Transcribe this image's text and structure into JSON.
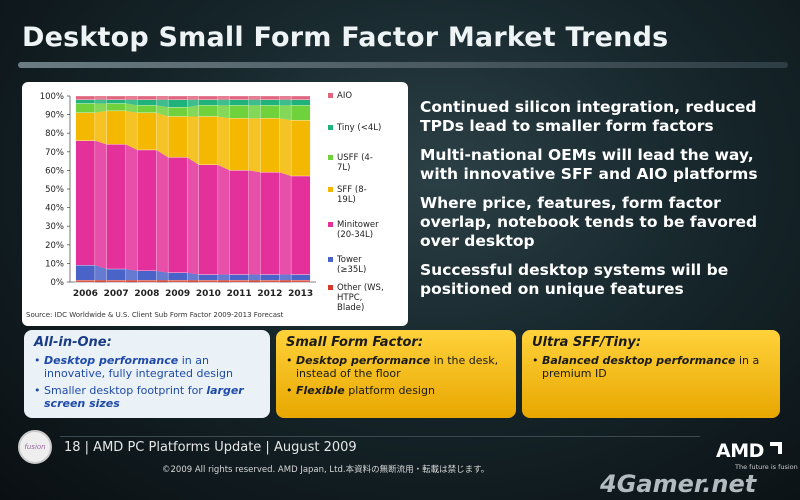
{
  "slide": {
    "title": "Desktop Small Form Factor Market Trends",
    "bullets": [
      "Continued silicon integration, reduced TPDs lead to smaller form factors",
      "Multi-national OEMs will lead the way, with innovative SFF and AIO platforms",
      "Where price, features, form factor overlap, notebook tends to be favored over desktop",
      "Successful desktop systems will be positioned on unique features"
    ],
    "source": "Source: IDC Worldwide & U.S. Client Sub Form Factor 2009-2013 Forecast",
    "boxes": {
      "aio": {
        "title": "All-in-One:",
        "item1_bold": "Desktop performance",
        "item1_rest": " in an innovative, fully integrated design",
        "item2_rest": "Smaller desktop footprint for ",
        "item2_bold": "larger screen sizes"
      },
      "sff": {
        "title": "Small Form Factor:",
        "item1_bold": "Desktop performance",
        "item1_rest": " in the desk, instead of the floor",
        "item2_bold": "Flexible",
        "item2_rest": " platform design"
      },
      "usff": {
        "title": "Ultra SFF/Tiny:",
        "item1_bold": "Balanced desktop performance",
        "item1_rest": " in a premium ID"
      }
    },
    "footer": {
      "page_text": "18  |  AMD PC Platforms Update  |  August 2009",
      "copyright": "©2009   All rights reserved. AMD Japan, Ltd.本資料の無断流用・転載は禁じます。",
      "logo_text": "fusion",
      "amd_logo": "AMD",
      "amd_tagline": "The future is fusion",
      "watermark": "4Gamer.net"
    },
    "colors": {
      "aio": "#e06680",
      "tiny": "#1fb27a",
      "usff": "#6fd13c",
      "sff": "#f5b800",
      "minitower": "#e3309a",
      "tower": "#4a63c8",
      "other": "#d83a2a"
    }
  },
  "chart_data": {
    "type": "bar",
    "stacked": true,
    "percent": true,
    "categories": [
      "2006",
      "2007",
      "2008",
      "2009",
      "2010",
      "2011",
      "2012",
      "2013"
    ],
    "yticks": [
      "0%",
      "10%",
      "20%",
      "30%",
      "40%",
      "50%",
      "60%",
      "70%",
      "80%",
      "90%",
      "100%"
    ],
    "ylim": [
      0,
      100
    ],
    "series": [
      {
        "name": "Other (WS, HTPC, Blade)",
        "key": "other",
        "values": [
          1,
          1,
          1,
          1,
          1,
          1,
          1,
          1
        ]
      },
      {
        "name": "Tower (≥35L)",
        "key": "tower",
        "values": [
          8,
          6,
          5,
          4,
          3,
          3,
          3,
          3
        ]
      },
      {
        "name": "Minitower (20-34L)",
        "key": "minitower",
        "values": [
          67,
          67,
          65,
          62,
          59,
          56,
          55,
          53
        ]
      },
      {
        "name": "SFF (8-19L)",
        "key": "sff",
        "values": [
          15,
          18,
          20,
          22,
          26,
          28,
          29,
          30
        ]
      },
      {
        "name": "USFF (4-7L)",
        "key": "usff",
        "values": [
          5,
          4,
          4,
          5,
          6,
          7,
          7,
          8
        ]
      },
      {
        "name": "Tiny (<4L)",
        "key": "tiny",
        "values": [
          2,
          2,
          3,
          4,
          3,
          3,
          3,
          3
        ]
      },
      {
        "name": "AIO",
        "key": "aio",
        "values": [
          2,
          2,
          2,
          2,
          2,
          2,
          2,
          2
        ]
      }
    ]
  }
}
